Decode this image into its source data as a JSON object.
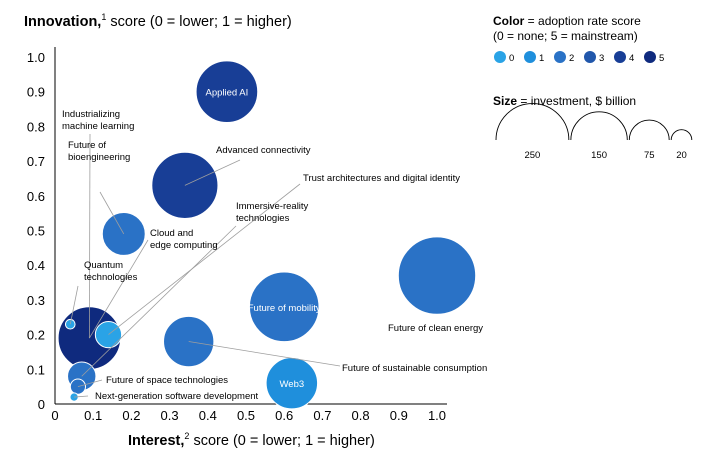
{
  "y_title": {
    "bold": "Innovation,",
    "sup": "1",
    "rest": " score (0 = lower; 1 = higher)"
  },
  "x_title": {
    "bold": "Interest,",
    "sup": "2",
    "rest": " score (0 = lower; 1 = higher)"
  },
  "legend": {
    "color_bold": "Color",
    "color_rest": " = adoption rate score",
    "color_sub": "(0 = none; 5 = mainstream)",
    "size_bold": "Size",
    "size_rest": " = investment, $ billion"
  },
  "chart_data": {
    "type": "scatter",
    "xlabel": "Interest, score (0 = lower; 1 = higher)",
    "ylabel": "Innovation, score (0 = lower; 1 = higher)",
    "xlim": [
      0,
      1.0
    ],
    "ylim": [
      0,
      1.0
    ],
    "xticks": [
      "0",
      "0.1",
      "0.2",
      "0.3",
      "0.4",
      "0.5",
      "0.6",
      "0.7",
      "0.8",
      "0.9",
      "1.0"
    ],
    "yticks": [
      "0",
      "0.1",
      "0.2",
      "0.3",
      "0.4",
      "0.5",
      "0.6",
      "0.7",
      "0.8",
      "0.9",
      "1.0"
    ],
    "grid": false,
    "adoption_colors": [
      "#2aa3e6",
      "#1f8fdc",
      "#2a72c6",
      "#2157ab",
      "#183e96",
      "#0f2a7e"
    ],
    "size_legend": [
      250,
      150,
      75,
      20
    ],
    "series": [
      {
        "name": "Applied AI",
        "interest": 0.45,
        "innovation": 0.9,
        "investment": 165,
        "adoption": 4,
        "inside": true
      },
      {
        "name": "Advanced connectivity",
        "interest": 0.34,
        "innovation": 0.63,
        "investment": 190,
        "adoption": 4
      },
      {
        "name": "Future of clean energy",
        "interest": 1.0,
        "innovation": 0.37,
        "investment": 260,
        "adoption": 2
      },
      {
        "name": "Future of mobility",
        "interest": 0.6,
        "innovation": 0.28,
        "investment": 210,
        "adoption": 2,
        "inside": true
      },
      {
        "name": "Future of sustainable consumption",
        "interest": 0.35,
        "innovation": 0.18,
        "investment": 110,
        "adoption": 2
      },
      {
        "name": "Web3",
        "interest": 0.62,
        "innovation": 0.06,
        "investment": 115,
        "adoption": 1,
        "inside": true
      },
      {
        "name": "Trust architectures and digital identity",
        "interest": 0.14,
        "innovation": 0.2,
        "investment": 30,
        "adoption": 0
      },
      {
        "name": "Immersive-reality technologies",
        "interest": 0.07,
        "innovation": 0.08,
        "investment": 35,
        "adoption": 2
      },
      {
        "name": "Industrializing machine learning",
        "interest": 0.09,
        "innovation": 0.19,
        "investment": 170,
        "adoption": 5
      },
      {
        "name": "Future of bioengineering",
        "interest": 0.18,
        "innovation": 0.49,
        "investment": 80,
        "adoption": 2
      },
      {
        "name": "Cloud and edge computing",
        "interest": 0.09,
        "innovation": 0.19,
        "investment": 170,
        "adoption": 5
      },
      {
        "name": "Quantum technologies",
        "interest": 0.04,
        "innovation": 0.23,
        "investment": 4,
        "adoption": 0
      },
      {
        "name": "Future of space technologies",
        "interest": 0.06,
        "innovation": 0.05,
        "investment": 10,
        "adoption": 2
      },
      {
        "name": "Next-generation software development",
        "interest": 0.05,
        "innovation": 0.02,
        "investment": 3,
        "adoption": 0
      }
    ]
  }
}
